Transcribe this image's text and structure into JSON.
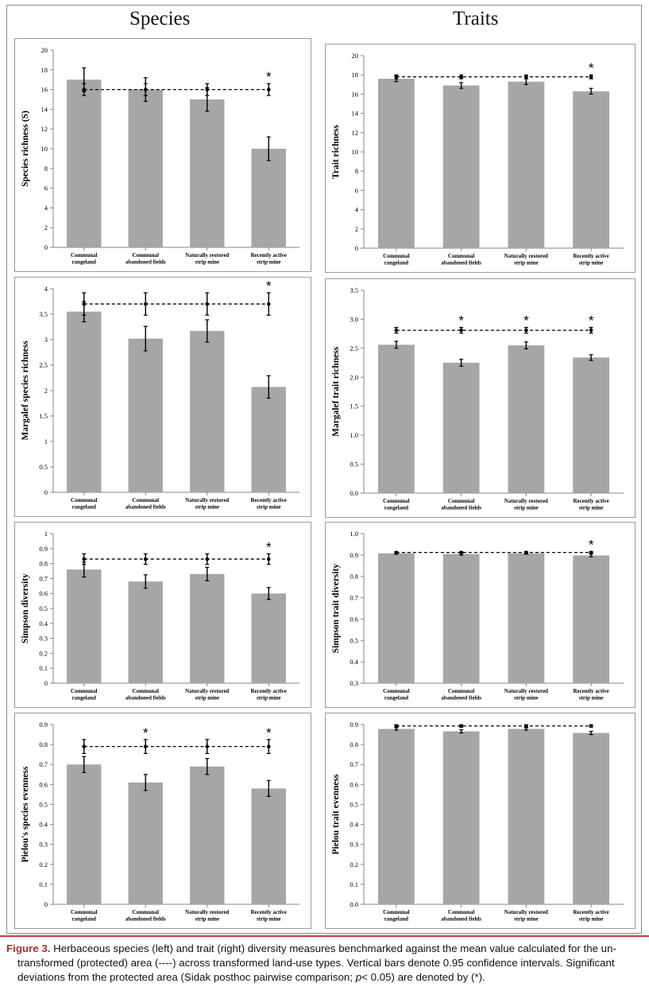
{
  "column_titles": {
    "left": "Species",
    "right": "Traits"
  },
  "caption": {
    "label": "Figure 3.",
    "text_1": "Herbaceous species (left) and trait (right) diversity measures benchmarked against the mean value calculated for the un-",
    "text_2": "transformed (protected) area (----) across transformed land-use types. Vertical bars denote 0.95 confidence intervals. Significant",
    "text_3a": "deviations from the protected area (Sidak posthoc pairwise comparison;",
    "text_3p": "p",
    "text_3b": "< 0.05) are denoted by (*)."
  },
  "colors": {
    "bar": "#a6a6a6",
    "axis": "#858585",
    "ink": "#000000"
  },
  "chart_data": [
    {
      "type": "bar",
      "title": "",
      "ylabel": "Species richness (S)",
      "xlabel": "",
      "categories": [
        [
          "Communal",
          "rangeland"
        ],
        [
          "Communal",
          "abandoned fields"
        ],
        [
          "Naturally restored",
          "strip mine"
        ],
        [
          "Recently active",
          "strip mine"
        ]
      ],
      "values": [
        17,
        16,
        15,
        10
      ],
      "err": [
        1.2,
        1.2,
        1.2,
        1.2
      ],
      "benchmark": 16,
      "bench_err": 0.6,
      "ylim": [
        0,
        20
      ],
      "ticks": [
        0,
        2,
        4,
        6,
        8,
        10,
        12,
        14,
        16,
        18,
        20
      ],
      "tick_labels": [
        "0",
        "2",
        "4",
        "6",
        "8",
        "10",
        "12",
        "14",
        "16",
        "18",
        "20"
      ],
      "significant": [
        false,
        false,
        false,
        true
      ],
      "star": "*"
    },
    {
      "type": "bar",
      "title": "",
      "ylabel": "Trait richness",
      "xlabel": "",
      "categories": [
        [
          "Communal",
          "rangeland"
        ],
        [
          "Communal",
          "abandoned fields"
        ],
        [
          "Naturally restored",
          "strip mine"
        ],
        [
          "Recently active",
          "strip mine"
        ]
      ],
      "values": [
        17.6,
        16.9,
        17.3,
        16.3
      ],
      "err": [
        0.3,
        0.3,
        0.3,
        0.3
      ],
      "benchmark": 17.8,
      "bench_err": 0.2,
      "ylim": [
        0,
        20
      ],
      "ticks": [
        0,
        2,
        4,
        6,
        8,
        10,
        12,
        14,
        16,
        18,
        20
      ],
      "tick_labels": [
        "0",
        "2",
        "4",
        "6",
        "8",
        "10",
        "12",
        "14",
        "16",
        "18",
        "20"
      ],
      "significant": [
        false,
        false,
        false,
        true
      ],
      "star": "*"
    },
    {
      "type": "bar",
      "title": "",
      "ylabel": "Margalef species richness",
      "xlabel": "",
      "categories": [
        [
          "Communal",
          "rangeland"
        ],
        [
          "Communal",
          "abandoned fields"
        ],
        [
          "Naturally restored",
          "strip mine"
        ],
        [
          "Recently active",
          "strip mine"
        ]
      ],
      "values": [
        3.55,
        3.02,
        3.17,
        2.07
      ],
      "err": [
        0.2,
        0.24,
        0.22,
        0.22
      ],
      "benchmark": 3.7,
      "bench_err": 0.22,
      "ylim": [
        0,
        4
      ],
      "ticks": [
        0,
        0.5,
        1,
        1.5,
        2,
        2.5,
        3,
        3.5,
        4
      ],
      "tick_labels": [
        "0",
        "0.5",
        "1",
        "1.5",
        "2",
        "2.5",
        "3",
        "3.5",
        "4"
      ],
      "significant": [
        false,
        false,
        false,
        true
      ],
      "star": "*"
    },
    {
      "type": "bar",
      "title": "",
      "ylabel": "Margalef trait richness",
      "xlabel": "",
      "categories": [
        [
          "Communal",
          "rangeland"
        ],
        [
          "Communal",
          "abandoned fields"
        ],
        [
          "Naturally restored",
          "strip mine"
        ],
        [
          "Recently active",
          "strip mine"
        ]
      ],
      "values": [
        2.56,
        2.25,
        2.55,
        2.34
      ],
      "err": [
        0.06,
        0.06,
        0.06,
        0.05
      ],
      "benchmark": 2.81,
      "bench_err": 0.05,
      "ylim": [
        0,
        3.5
      ],
      "ticks": [
        0,
        0.5,
        1,
        1.5,
        2,
        2.5,
        3,
        3.5
      ],
      "tick_labels": [
        "0.0",
        "0.5",
        "1.0",
        "1.5",
        "2.0",
        "2.5",
        "3.0",
        "3.5"
      ],
      "significant": [
        false,
        true,
        true,
        true
      ],
      "star": "*"
    },
    {
      "type": "bar",
      "title": "",
      "ylabel": "Simpson diversity",
      "xlabel": "",
      "categories": [
        [
          "Communal",
          "rangeland"
        ],
        [
          "Communal",
          "abandoned fields"
        ],
        [
          "Naturally restored",
          "strip mine"
        ],
        [
          "Recently active",
          "strip mine"
        ]
      ],
      "values": [
        0.76,
        0.68,
        0.73,
        0.6
      ],
      "err": [
        0.05,
        0.045,
        0.045,
        0.04
      ],
      "benchmark": 0.83,
      "bench_err": 0.035,
      "ylim": [
        0,
        1
      ],
      "ticks": [
        0,
        0.1,
        0.2,
        0.3,
        0.4,
        0.5,
        0.6,
        0.7,
        0.8,
        0.9,
        1
      ],
      "tick_labels": [
        "0",
        "0.1",
        "0.2",
        "0.3",
        "0.4",
        "0.5",
        "0.6",
        "0.7",
        "0.8",
        "0.9",
        "1"
      ],
      "significant": [
        false,
        false,
        false,
        true
      ],
      "star": "*"
    },
    {
      "type": "bar",
      "title": "",
      "ylabel": "Simpson trait diversity",
      "xlabel": "",
      "categories": [
        [
          "Communal",
          "rangeland"
        ],
        [
          "Communal",
          "abandoned fields"
        ],
        [
          "Naturally restored",
          "strip mine"
        ],
        [
          "Recently active",
          "strip mine"
        ]
      ],
      "values": [
        0.908,
        0.905,
        0.908,
        0.898
      ],
      "err": [
        0.004,
        0.005,
        0.004,
        0.006
      ],
      "benchmark": 0.912,
      "bench_err": 0.004,
      "ylim": [
        0.3,
        1
      ],
      "ticks": [
        0.3,
        0.4,
        0.5,
        0.6,
        0.7,
        0.8,
        0.9,
        1
      ],
      "tick_labels": [
        "0.3",
        "0.4",
        "0.5",
        "0.6",
        "0.7",
        "0.8",
        "0.9",
        "1.0"
      ],
      "significant": [
        false,
        false,
        false,
        true
      ],
      "star": "*"
    },
    {
      "type": "bar",
      "title": "",
      "ylabel": "Pielou's species evenness",
      "xlabel": "",
      "categories": [
        [
          "Communal",
          "rangeland"
        ],
        [
          "Communal",
          "abandoned fields"
        ],
        [
          "Naturally restored",
          "strip mine"
        ],
        [
          "Recently active",
          "strip mine"
        ]
      ],
      "values": [
        0.7,
        0.61,
        0.69,
        0.58
      ],
      "err": [
        0.04,
        0.04,
        0.04,
        0.04
      ],
      "benchmark": 0.79,
      "bench_err": 0.035,
      "ylim": [
        0,
        0.9
      ],
      "ticks": [
        0,
        0.1,
        0.2,
        0.3,
        0.4,
        0.5,
        0.6,
        0.7,
        0.8,
        0.9
      ],
      "tick_labels": [
        "0",
        "0.1",
        "0.2",
        "0.3",
        "0.4",
        "0.5",
        "0.6",
        "0.7",
        "0.8",
        "0.9"
      ],
      "significant": [
        false,
        true,
        false,
        true
      ],
      "star": "*"
    },
    {
      "type": "bar",
      "title": "",
      "ylabel": "Pielou  trait evenness",
      "xlabel": "",
      "categories": [
        [
          "Communal",
          "rangeland"
        ],
        [
          "Communal",
          "abandoned fields"
        ],
        [
          "Naturally restored",
          "strip mine"
        ],
        [
          "Recently active",
          "strip mine"
        ]
      ],
      "values": [
        0.878,
        0.866,
        0.878,
        0.858
      ],
      "err": [
        0.006,
        0.008,
        0.006,
        0.008
      ],
      "benchmark": 0.893,
      "bench_err": 0.006,
      "ylim": [
        0,
        0.9
      ],
      "ticks": [
        0,
        0.1,
        0.2,
        0.3,
        0.4,
        0.5,
        0.6,
        0.7,
        0.8,
        0.9
      ],
      "tick_labels": [
        "0.0",
        "0.1",
        "0.2",
        "0.3",
        "0.4",
        "0.5",
        "0.6",
        "0.7",
        "0.8",
        "0.9"
      ],
      "significant": [
        false,
        false,
        false,
        false
      ],
      "star": "*"
    }
  ]
}
